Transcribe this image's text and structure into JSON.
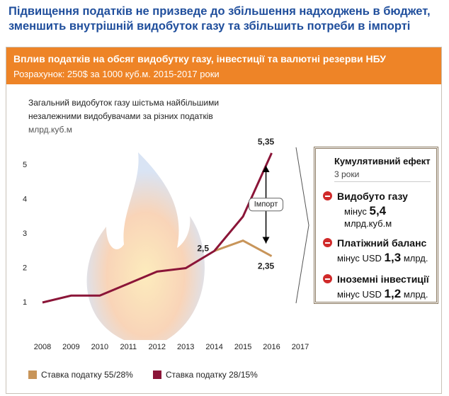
{
  "header": {
    "title": "Підвищення податків не призведе до збільшення надходжень в бюджет, зменшить внутрішній видобуток газу та збільшить потреби в імпорті"
  },
  "banner": {
    "title": "Вплив податків на обсяг видобутку газу, інвестиції та валютні резерви НБУ",
    "subtitle": "Розрахунок: 250$ за 1000 куб.м. 2015-2017 роки"
  },
  "chart_data": {
    "type": "line",
    "title": "Загальний видобуток газу шістьма найбільшими незалежними видобувачами за різних податків",
    "subtitle": "млрд.куб.м",
    "x": [
      2008,
      2009,
      2010,
      2011,
      2012,
      2013,
      2014,
      2015,
      2016
    ],
    "xlim": [
      2007.5,
      2017
    ],
    "xticks": [
      2008,
      2009,
      2010,
      2011,
      2012,
      2013,
      2014,
      2015,
      2016,
      2017
    ],
    "ylim": [
      0,
      5.5
    ],
    "yticks": [
      1,
      2,
      3,
      4,
      5
    ],
    "series": [
      {
        "name": "Ставка податку 55/28%",
        "color": "#c8955a",
        "values": [
          null,
          null,
          null,
          null,
          null,
          null,
          2.5,
          2.8,
          2.35
        ],
        "value_labels": [
          null,
          null,
          null,
          null,
          null,
          null,
          null,
          null,
          "2,35"
        ]
      },
      {
        "name": "Ставка податку 28/15%",
        "color": "#8b1538",
        "values": [
          1.0,
          1.2,
          1.2,
          1.55,
          1.9,
          2.0,
          2.5,
          3.5,
          5.35
        ],
        "value_labels": [
          null,
          null,
          null,
          null,
          null,
          null,
          "2,5",
          null,
          "5,35"
        ]
      }
    ],
    "annotation": "Імпорт",
    "legend": "bottom"
  },
  "panel": {
    "title": "Кумулятивний ефект",
    "subtitle": "3 роки",
    "items": [
      {
        "title": "Видобуто газу",
        "prefix": "мінус",
        "amount": "5,4",
        "unit": "млрд.куб.м"
      },
      {
        "title": "Платіжний баланс",
        "prefix": "мінус USD",
        "amount": "1,3",
        "unit": "млрд."
      },
      {
        "title": "Іноземні інвестиції",
        "prefix": "мінус USD",
        "amount": "1,2",
        "unit": "млрд."
      }
    ]
  }
}
